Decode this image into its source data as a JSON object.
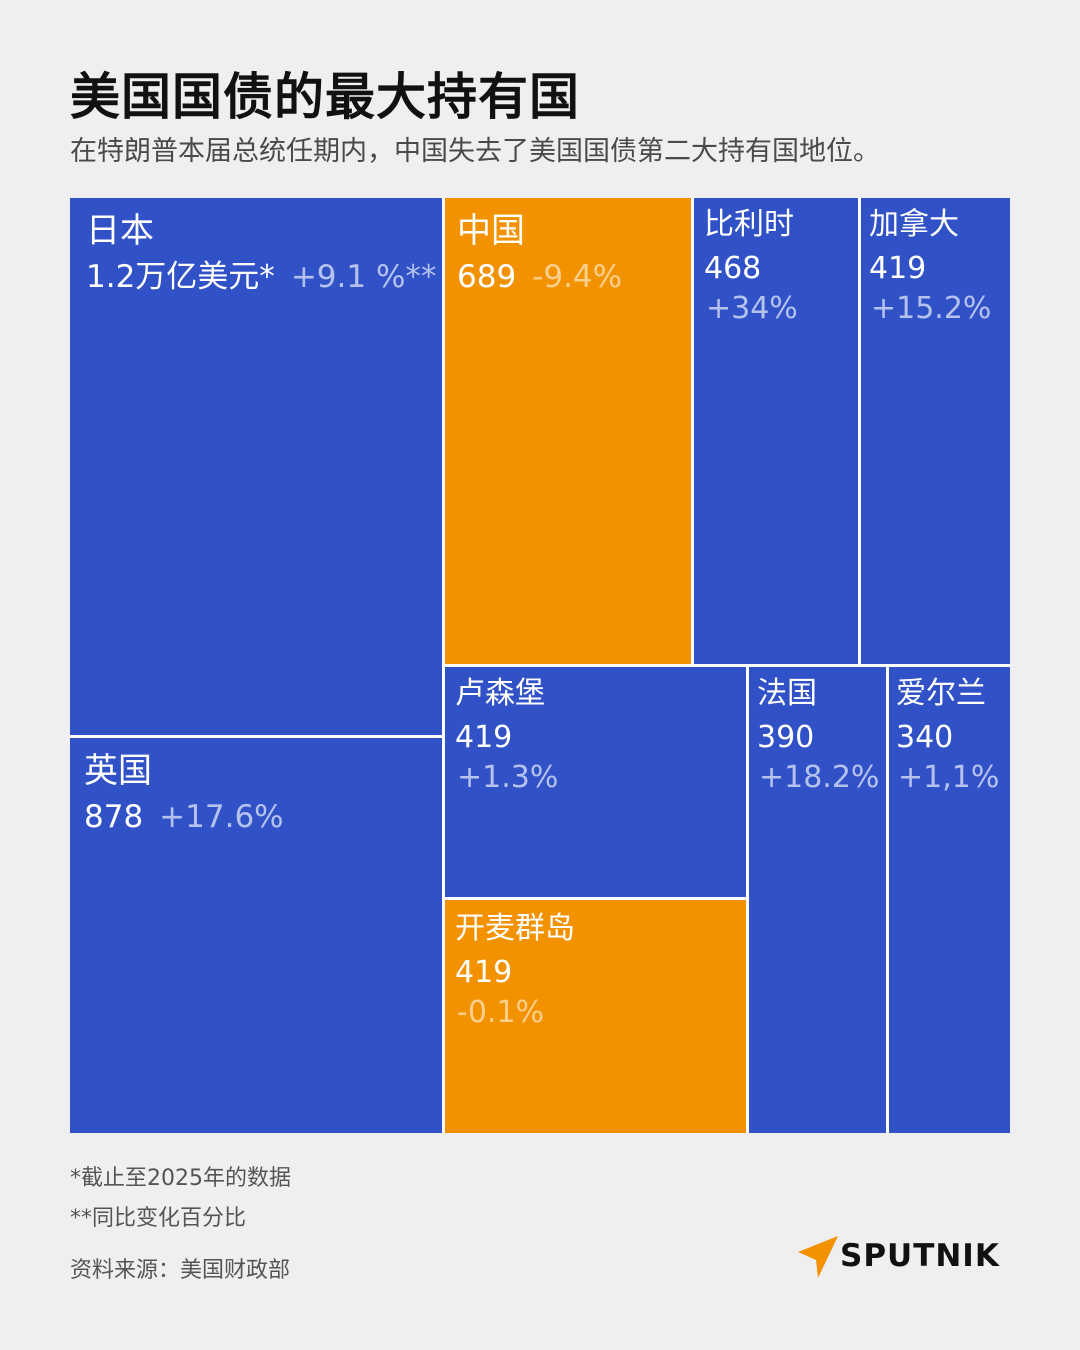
{
  "title": "美国国债的最大持有国",
  "subtitle": "在特朗普本届总统任期内，中国失去了美国国债第二大持有国地位。",
  "colors": {
    "blue": "#3152c6",
    "orange": "#f29200",
    "change_on_blue": "#b6c2ee",
    "change_on_orange": "#fbd08c"
  },
  "chart_data": {
    "type": "treemap",
    "items": [
      {
        "name": "日本",
        "value_label": "1.2万亿美元*",
        "value": 1200,
        "change": "+9.1 %**",
        "highlight": false
      },
      {
        "name": "中国",
        "value_label": "689",
        "value": 689,
        "change": "-9.4%",
        "highlight": true
      },
      {
        "name": "比利时",
        "value_label": "468",
        "value": 468,
        "change": "+34%",
        "highlight": false
      },
      {
        "name": "加拿大",
        "value_label": "419",
        "value": 419,
        "change": "+15.2%",
        "highlight": false
      },
      {
        "name": "英国",
        "value_label": "878",
        "value": 878,
        "change": "+17.6%",
        "highlight": false
      },
      {
        "name": "卢森堡",
        "value_label": "419",
        "value": 419,
        "change": "+1.3%",
        "highlight": false
      },
      {
        "name": "法国",
        "value_label": "390",
        "value": 390,
        "change": "+18.2%",
        "highlight": false
      },
      {
        "name": "爱尔兰",
        "value_label": "340",
        "value": 340,
        "change": "+1,1%",
        "highlight": false
      },
      {
        "name": "开麦群岛",
        "value_label": "419",
        "value": 419,
        "change": "-0.1%",
        "highlight": true
      }
    ]
  },
  "footnotes": {
    "note1": "*截止至2025年的数据",
    "note2": "**同比变化百分比",
    "source": "资料来源：美国财政部"
  },
  "logo": {
    "text": "SPUTNIK",
    "icon": "sputnik-arrow-icon"
  }
}
